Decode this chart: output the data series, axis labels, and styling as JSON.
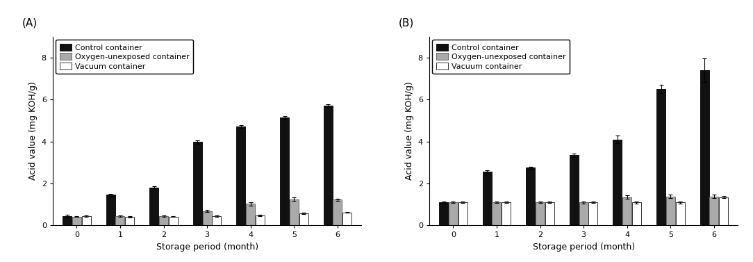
{
  "months": [
    0,
    1,
    2,
    3,
    4,
    5,
    6
  ],
  "panel_A": {
    "label": "(A)",
    "control": [
      0.45,
      1.45,
      1.8,
      3.97,
      4.72,
      5.15,
      5.72
    ],
    "oxygen": [
      0.42,
      0.44,
      0.43,
      0.68,
      1.02,
      1.25,
      1.22
    ],
    "vacuum": [
      0.44,
      0.4,
      0.42,
      0.44,
      0.47,
      0.57,
      0.62
    ],
    "control_err": [
      0.05,
      0.05,
      0.05,
      0.08,
      0.06,
      0.07,
      0.07
    ],
    "oxygen_err": [
      0.03,
      0.03,
      0.03,
      0.05,
      0.07,
      0.08,
      0.06
    ],
    "vacuum_err": [
      0.03,
      0.03,
      0.03,
      0.03,
      0.03,
      0.03,
      0.03
    ],
    "ylim": [
      0,
      9
    ],
    "yticks": [
      0,
      2,
      4,
      6,
      8
    ]
  },
  "panel_B": {
    "label": "(B)",
    "control": [
      1.1,
      2.55,
      2.75,
      3.35,
      4.1,
      6.5,
      7.4
    ],
    "oxygen": [
      1.1,
      1.1,
      1.1,
      1.1,
      1.35,
      1.38,
      1.38
    ],
    "vacuum": [
      1.1,
      1.1,
      1.1,
      1.1,
      1.1,
      1.1,
      1.35
    ],
    "control_err": [
      0.05,
      0.08,
      0.05,
      0.08,
      0.18,
      0.2,
      0.55
    ],
    "oxygen_err": [
      0.03,
      0.03,
      0.03,
      0.05,
      0.08,
      0.08,
      0.08
    ],
    "vacuum_err": [
      0.03,
      0.03,
      0.03,
      0.03,
      0.05,
      0.05,
      0.06
    ],
    "ylim": [
      0,
      9
    ],
    "yticks": [
      0,
      2,
      4,
      6,
      8
    ]
  },
  "legend_labels": [
    "Control container",
    "Oxygen-unexposed container",
    "Vacuum container"
  ],
  "bar_colors": [
    "#111111",
    "#aaaaaa",
    "#ffffff"
  ],
  "bar_edgecolors": [
    "#111111",
    "#666666",
    "#333333"
  ],
  "xlabel": "Storage period (month)",
  "ylabel": "Acid value (mg KOH/g)",
  "bar_width": 0.22,
  "fontsize_label": 9,
  "fontsize_tick": 8,
  "fontsize_legend": 8,
  "fontsize_panel": 11,
  "capsize": 2
}
